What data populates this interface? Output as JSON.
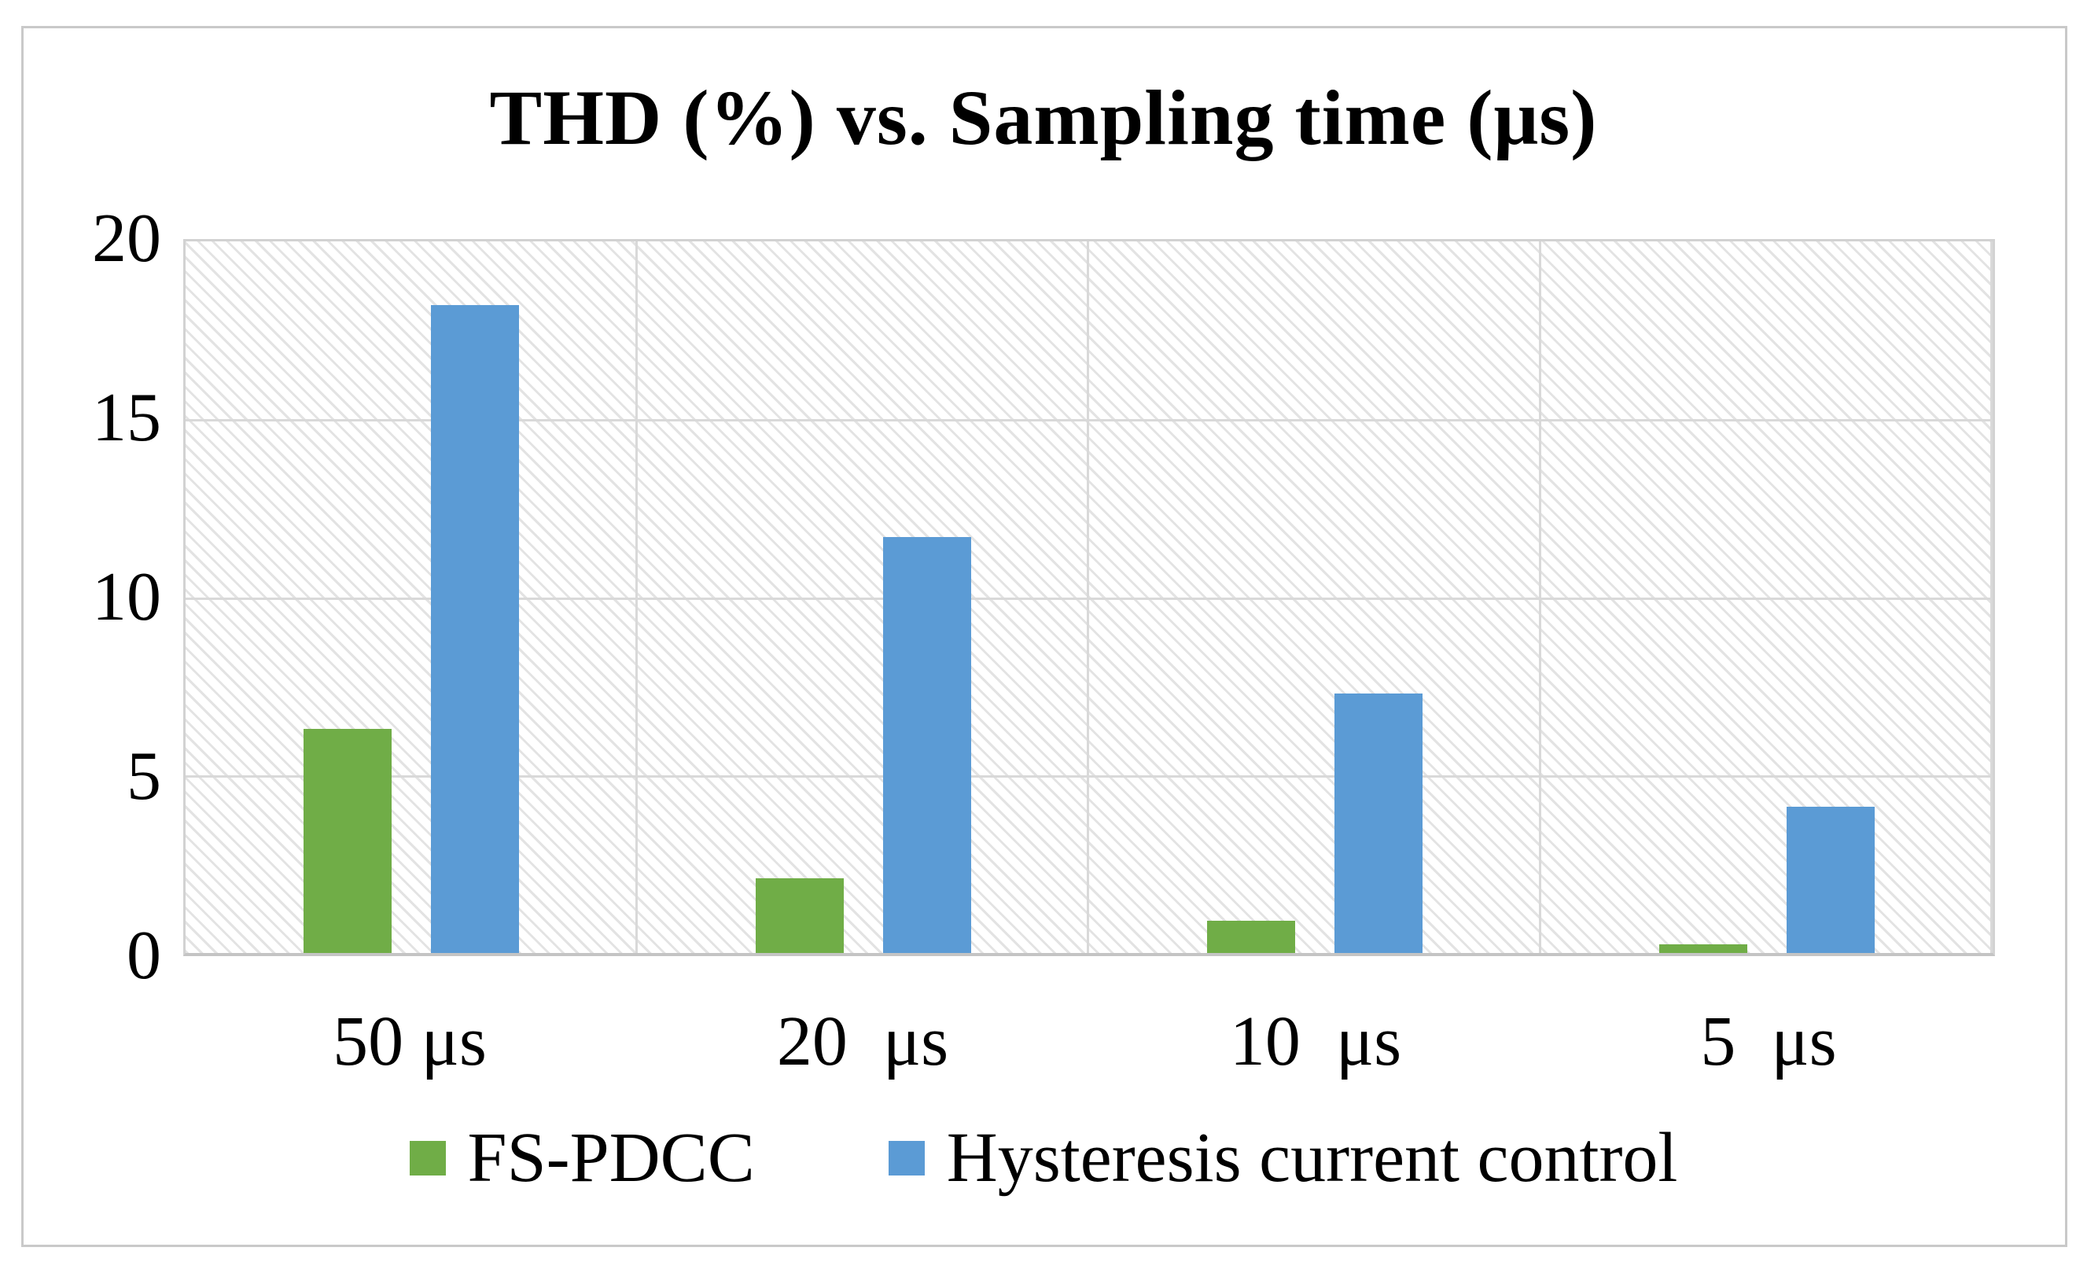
{
  "chart_data": {
    "type": "bar",
    "title": "THD (%) vs. Sampling time (μs)",
    "categories": [
      "50 μs",
      "20  μs",
      "10  μs",
      "5  μs"
    ],
    "series": [
      {
        "name": "FS-PDCC",
        "color": "#70AD47",
        "values": [
          6.3,
          2.1,
          0.9,
          0.25
        ]
      },
      {
        "name": "Hysteresis current control",
        "color": "#5B9BD5",
        "values": [
          18.2,
          11.7,
          7.3,
          4.1
        ]
      }
    ],
    "xlabel": "",
    "ylabel": "",
    "y_axis": {
      "min": 0,
      "max": 20,
      "ticks": [
        20,
        15,
        10,
        5,
        0
      ]
    },
    "grid": "on",
    "plot_background": "light diagonal hatch",
    "legend_position": "bottom"
  }
}
